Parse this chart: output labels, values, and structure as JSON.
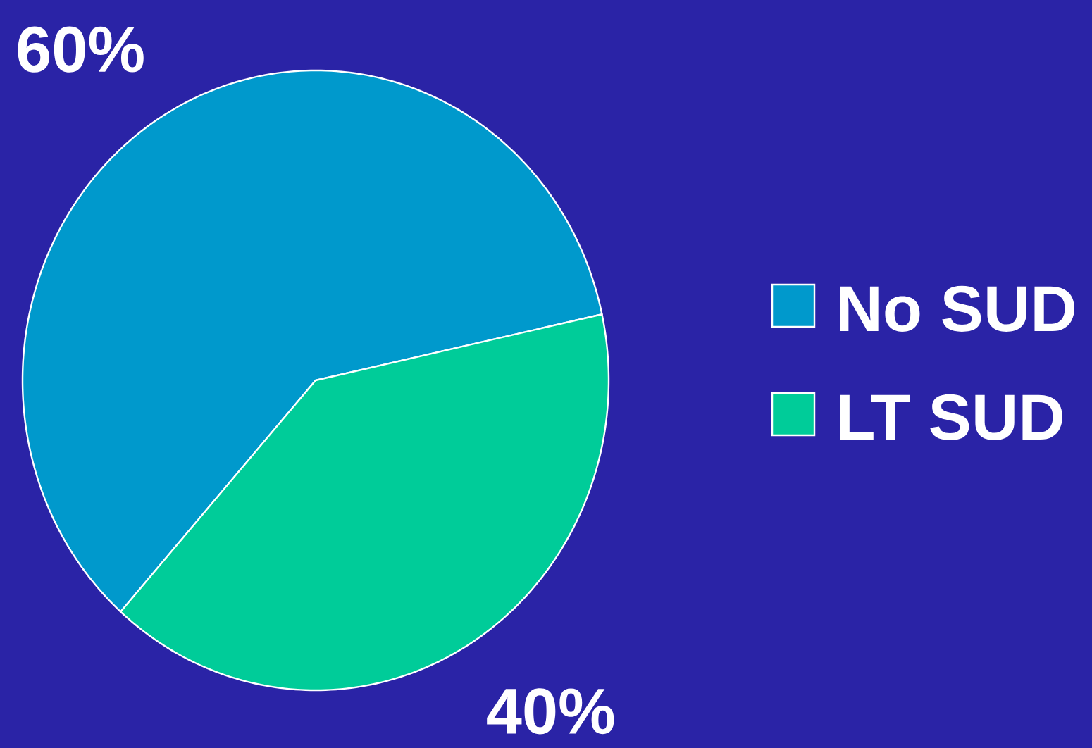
{
  "chart_data": {
    "type": "pie",
    "categories": [
      "No SUD",
      "LT SUD"
    ],
    "values": [
      60,
      40
    ],
    "colors": [
      "#0099cc",
      "#00cc99"
    ],
    "value_labels": [
      "60%",
      "40%"
    ],
    "legend": "right"
  }
}
